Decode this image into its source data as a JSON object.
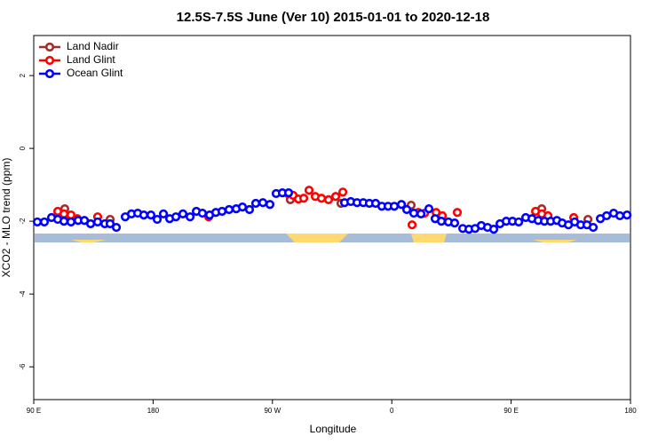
{
  "chart_data": {
    "type": "scatter",
    "title": "12.5S-7.5S June (Ver 10)   2015-01-01 to 2020-12-18",
    "x_label": "Longitude",
    "y_label": "XCO2 - MLO trend (ppm)",
    "xlim": [
      90,
      540
    ],
    "ylim": [
      -6.9,
      3.1
    ],
    "xticks": [
      {
        "value": 90,
        "label": "90 E"
      },
      {
        "value": 180,
        "label": "180"
      },
      {
        "value": 270,
        "label": "90 W"
      },
      {
        "value": 360,
        "label": "0"
      },
      {
        "value": 450,
        "label": "90 E"
      },
      {
        "value": 540,
        "label": "180"
      }
    ],
    "yticks": [
      -6,
      -4,
      -2,
      0,
      2
    ],
    "legend": "top-left",
    "series": [
      {
        "name": "Land Nadir",
        "color": "#a52a2a",
        "x": [
          113.4,
          118.1,
          147.6,
          283.5,
          321.7,
          374.6,
          473.1,
          507.9
        ],
        "values": [
          -1.66,
          -1.9,
          -1.95,
          -1.41,
          -1.51,
          -1.56,
          -1.66,
          -1.95
        ]
      },
      {
        "name": "Land Glint",
        "color": "#ff0000",
        "x": [
          108.1,
          112.8,
          118.1,
          122.8,
          138.2,
          221.9,
          281.5,
          285.6,
          289.6,
          293.6,
          297.6,
          302.3,
          307.0,
          312.3,
          317.7,
          323.1,
          375.3,
          380.0,
          384.7,
          393.4,
          398.1,
          409.4,
          468.4,
          473.1,
          477.8,
          497.2
        ],
        "values": [
          -1.73,
          -1.8,
          -1.83,
          -1.93,
          -1.88,
          -1.88,
          -1.24,
          -1.29,
          -1.39,
          -1.37,
          -1.15,
          -1.32,
          -1.37,
          -1.41,
          -1.32,
          -1.2,
          -2.1,
          -1.76,
          -1.78,
          -1.76,
          -1.85,
          -1.76,
          -1.73,
          -1.8,
          -1.85,
          -1.9
        ]
      },
      {
        "name": "Ocean Glint",
        "color": "#0000ff",
        "x": [
          92.7,
          98.0,
          103.4,
          108.1,
          112.8,
          118.1,
          123.5,
          128.2,
          132.9,
          138.2,
          143.6,
          147.6,
          152.3,
          159.0,
          163.7,
          168.4,
          173.0,
          178.4,
          183.1,
          187.8,
          192.5,
          197.2,
          202.5,
          207.9,
          212.6,
          217.2,
          222.6,
          227.3,
          232.0,
          237.3,
          242.7,
          247.4,
          252.7,
          257.4,
          262.8,
          268.1,
          272.8,
          277.5,
          282.2,
          324.4,
          329.1,
          333.8,
          338.5,
          343.1,
          347.8,
          352.5,
          357.2,
          361.9,
          367.3,
          371.3,
          376.6,
          382.0,
          388.0,
          392.7,
          397.4,
          402.7,
          407.4,
          413.5,
          418.2,
          422.8,
          427.5,
          432.2,
          436.9,
          441.6,
          446.3,
          451.0,
          455.7,
          461.0,
          465.7,
          470.4,
          475.1,
          479.8,
          484.5,
          488.5,
          493.2,
          497.9,
          502.5,
          507.2,
          511.9,
          517.3,
          522.0,
          527.3,
          532.0,
          537.4
        ],
        "values": [
          -2.02,
          -2.02,
          -1.9,
          -1.95,
          -2.0,
          -2.02,
          -1.98,
          -1.98,
          -2.07,
          -2.02,
          -2.07,
          -2.07,
          -2.17,
          -1.88,
          -1.8,
          -1.78,
          -1.83,
          -1.83,
          -1.95,
          -1.8,
          -1.93,
          -1.88,
          -1.8,
          -1.88,
          -1.73,
          -1.78,
          -1.83,
          -1.76,
          -1.73,
          -1.68,
          -1.66,
          -1.61,
          -1.68,
          -1.51,
          -1.49,
          -1.54,
          -1.24,
          -1.22,
          -1.22,
          -1.49,
          -1.46,
          -1.49,
          -1.49,
          -1.51,
          -1.51,
          -1.59,
          -1.59,
          -1.59,
          -1.54,
          -1.68,
          -1.78,
          -1.8,
          -1.66,
          -1.93,
          -2.0,
          -2.02,
          -2.05,
          -2.2,
          -2.22,
          -2.2,
          -2.12,
          -2.17,
          -2.22,
          -2.07,
          -2.0,
          -2.0,
          -2.02,
          -1.9,
          -1.93,
          -1.98,
          -2.0,
          -2.0,
          -1.98,
          -2.05,
          -2.1,
          -2.02,
          -2.1,
          -2.1,
          -2.17,
          -1.93,
          -1.85,
          -1.78,
          -1.85,
          -1.83
        ]
      }
    ]
  }
}
